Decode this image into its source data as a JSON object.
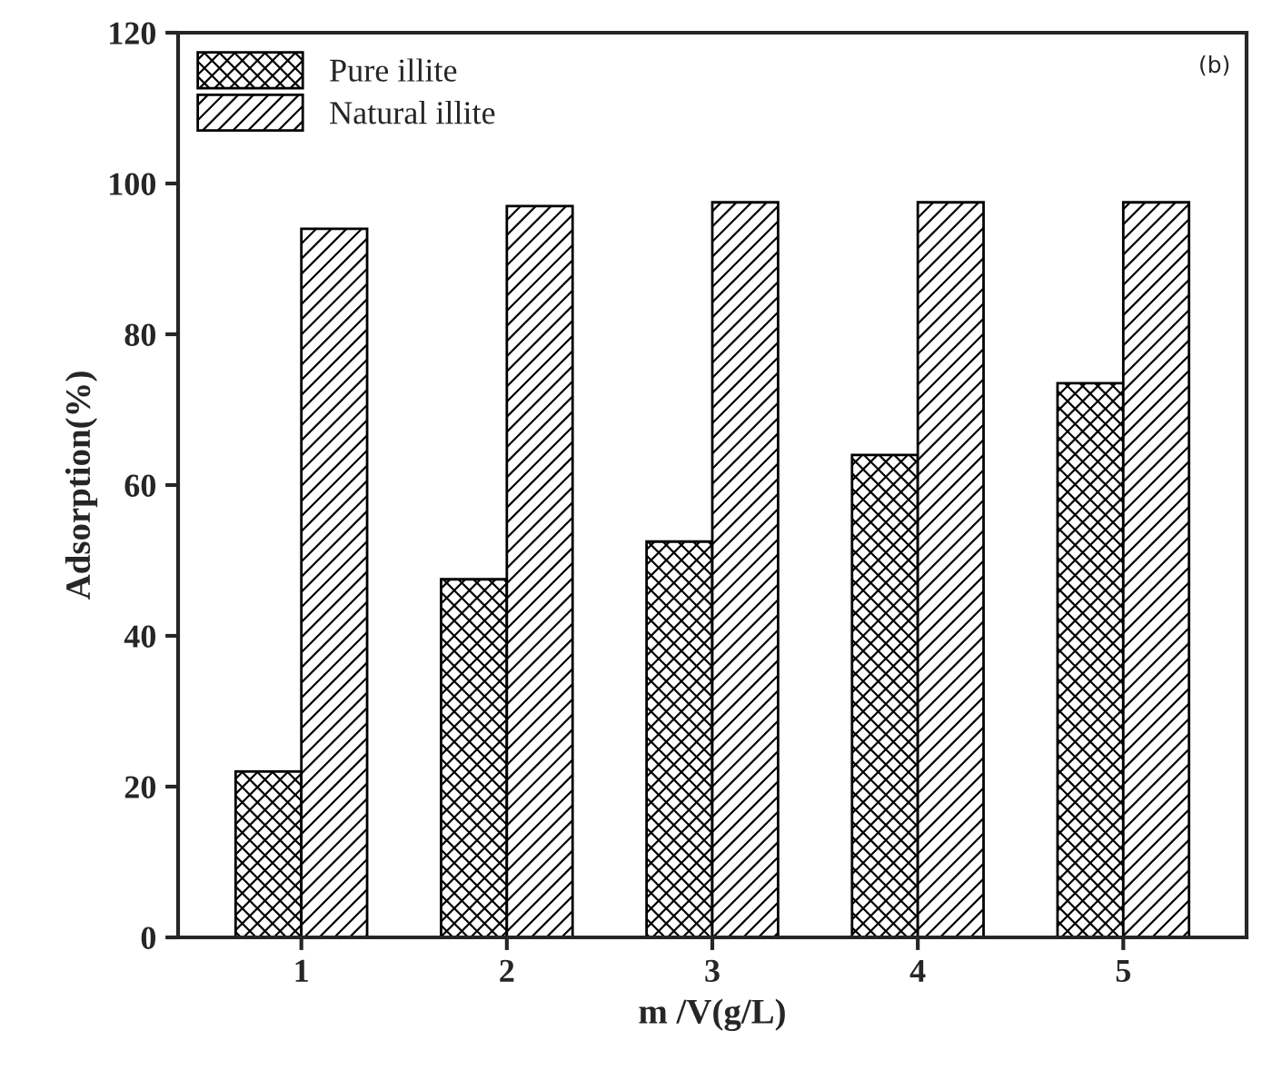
{
  "chart_data": {
    "type": "bar",
    "xlabel": "m /V(g/L)",
    "ylabel": "Adsorption(%)",
    "categories": [
      "1",
      "2",
      "3",
      "4",
      "5"
    ],
    "series": [
      {
        "name": "Pure illite",
        "color": "#000000",
        "values": [
          22,
          47.5,
          52.5,
          64,
          73.5
        ]
      },
      {
        "name": "Natural illite",
        "color": "#000000",
        "values": [
          94,
          97,
          97.5,
          97.5,
          97.5
        ]
      }
    ],
    "ylim": [
      0,
      120
    ],
    "yticks": [
      0,
      20,
      40,
      60,
      80,
      100,
      120
    ],
    "annotations": [
      "(b)"
    ],
    "legend": "top left",
    "grid": false
  }
}
